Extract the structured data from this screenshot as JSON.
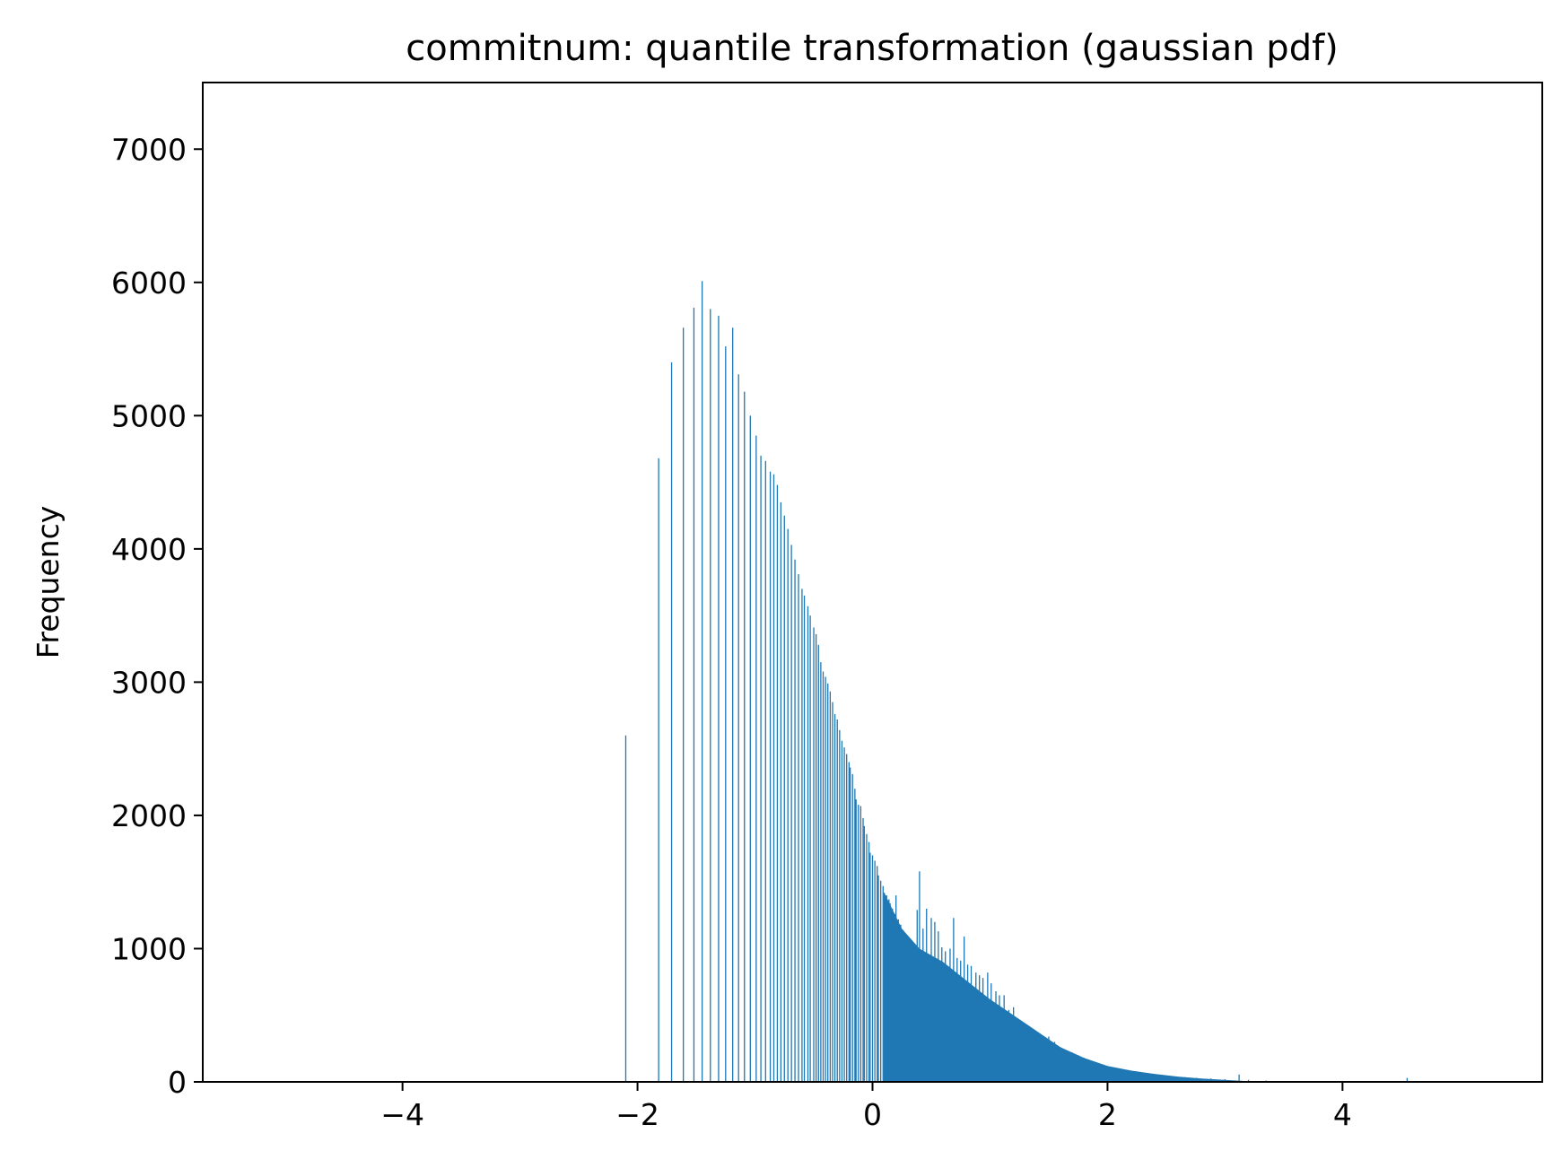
{
  "chart_data": {
    "type": "bar",
    "title": "commitnum: quantile transformation (gaussian pdf)",
    "xlabel": "",
    "ylabel": "Frequency",
    "xlim": [
      -5.7,
      5.7
    ],
    "ylim": [
      0,
      7500
    ],
    "xticks": [
      -4,
      -2,
      0,
      2,
      4
    ],
    "xtick_labels": [
      "−4",
      "−2",
      "0",
      "2",
      "4"
    ],
    "yticks": [
      0,
      1000,
      2000,
      3000,
      4000,
      5000,
      6000,
      7000
    ],
    "ytick_labels": [
      "0",
      "1000",
      "2000",
      "3000",
      "4000",
      "5000",
      "6000",
      "7000"
    ],
    "grid": false,
    "legend": null,
    "bar_color": "#1f77b4",
    "series": [
      {
        "values": [
          [
            -2.1,
            2600
          ],
          [
            -1.82,
            4680
          ],
          [
            -1.71,
            5400
          ],
          [
            -1.61,
            5660
          ],
          [
            -1.52,
            5810
          ],
          [
            -1.45,
            6010
          ],
          [
            -1.38,
            5800
          ],
          [
            -1.31,
            5750
          ],
          [
            -1.25,
            5520
          ],
          [
            -1.19,
            5660
          ],
          [
            -1.14,
            5310
          ],
          [
            -1.09,
            5180
          ],
          [
            -1.04,
            5000
          ],
          [
            -0.99,
            4850
          ],
          [
            -0.95,
            4700
          ],
          [
            -0.91,
            4660
          ],
          [
            -0.87,
            4580
          ],
          [
            -0.84,
            4560
          ],
          [
            -0.81,
            4480
          ],
          [
            -0.78,
            4350
          ],
          [
            -0.75,
            4250
          ],
          [
            -0.72,
            4150
          ],
          [
            -0.69,
            4030
          ],
          [
            -0.66,
            3920
          ],
          [
            -0.63,
            3810
          ],
          [
            -0.6,
            3700
          ],
          [
            -0.58,
            3650
          ],
          [
            -0.55,
            3570
          ],
          [
            -0.53,
            3500
          ],
          [
            -0.5,
            3410
          ],
          [
            -0.48,
            3360
          ],
          [
            -0.46,
            3280
          ],
          [
            -0.44,
            3150
          ],
          [
            -0.42,
            3080
          ],
          [
            -0.4,
            3040
          ],
          [
            -0.38,
            2990
          ],
          [
            -0.36,
            2930
          ],
          [
            -0.34,
            2850
          ],
          [
            -0.32,
            2760
          ],
          [
            -0.3,
            2720
          ],
          [
            -0.28,
            2640
          ],
          [
            -0.26,
            2560
          ],
          [
            -0.24,
            2510
          ],
          [
            -0.22,
            2460
          ],
          [
            -0.2,
            2400
          ],
          [
            -0.19,
            2360
          ],
          [
            -0.17,
            2310
          ],
          [
            -0.15,
            2200
          ],
          [
            -0.14,
            2120
          ],
          [
            -0.12,
            2080
          ],
          [
            -0.1,
            2070
          ],
          [
            -0.08,
            1980
          ],
          [
            -0.07,
            1920
          ],
          [
            -0.05,
            1860
          ],
          [
            -0.03,
            1800
          ],
          [
            -0.02,
            1720
          ],
          [
            0.0,
            1700
          ],
          [
            0.02,
            1660
          ],
          [
            0.04,
            1620
          ],
          [
            0.05,
            1550
          ],
          [
            0.07,
            1510
          ],
          [
            0.09,
            1470
          ],
          [
            0.1,
            1420
          ],
          [
            0.12,
            1400
          ],
          [
            0.14,
            1370
          ],
          [
            0.15,
            1340
          ],
          [
            0.17,
            1300
          ],
          [
            0.19,
            1260
          ],
          [
            0.2,
            1400
          ],
          [
            0.22,
            1220
          ],
          [
            0.24,
            1180
          ],
          [
            0.26,
            1140
          ],
          [
            0.28,
            1100
          ],
          [
            0.3,
            1070
          ],
          [
            0.33,
            1050
          ],
          [
            0.35,
            1020
          ],
          [
            0.38,
            1290
          ],
          [
            0.4,
            1580
          ],
          [
            0.43,
            1150
          ],
          [
            0.46,
            1300
          ],
          [
            0.5,
            1230
          ],
          [
            0.53,
            1200
          ],
          [
            0.56,
            1130
          ],
          [
            0.59,
            1010
          ],
          [
            0.62,
            980
          ],
          [
            0.66,
            1000
          ],
          [
            0.69,
            1230
          ],
          [
            0.72,
            930
          ],
          [
            0.75,
            910
          ],
          [
            0.78,
            1090
          ],
          [
            0.81,
            880
          ],
          [
            0.84,
            870
          ],
          [
            0.88,
            820
          ],
          [
            0.91,
            800
          ],
          [
            0.94,
            780
          ],
          [
            0.98,
            820
          ],
          [
            1.01,
            740
          ],
          [
            1.05,
            680
          ],
          [
            1.08,
            650
          ],
          [
            1.12,
            650
          ],
          [
            1.16,
            540
          ],
          [
            1.2,
            560
          ],
          [
            1.24,
            460
          ],
          [
            1.28,
            430
          ],
          [
            1.32,
            410
          ],
          [
            1.37,
            380
          ],
          [
            1.41,
            360
          ],
          [
            1.46,
            330
          ],
          [
            1.5,
            340
          ],
          [
            1.55,
            300
          ],
          [
            1.6,
            260
          ],
          [
            1.65,
            230
          ],
          [
            1.7,
            220
          ],
          [
            1.75,
            200
          ],
          [
            1.8,
            180
          ],
          [
            1.86,
            160
          ],
          [
            1.92,
            140
          ],
          [
            1.98,
            120
          ],
          [
            2.04,
            110
          ],
          [
            2.1,
            100
          ],
          [
            2.17,
            90
          ],
          [
            2.24,
            80
          ],
          [
            2.31,
            70
          ],
          [
            2.39,
            60
          ],
          [
            2.47,
            50
          ],
          [
            2.56,
            40
          ],
          [
            2.66,
            35
          ],
          [
            2.76,
            30
          ],
          [
            2.88,
            25
          ],
          [
            3.0,
            20
          ],
          [
            3.12,
            55
          ],
          [
            3.2,
            15
          ],
          [
            3.35,
            10
          ],
          [
            4.55,
            30
          ]
        ]
      }
    ]
  }
}
